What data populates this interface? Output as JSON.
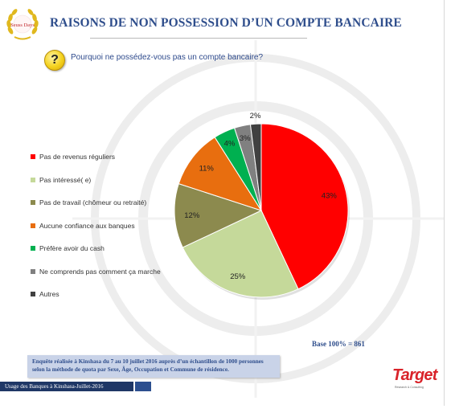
{
  "header": {
    "title": "RAISONS DE NON POSSESSION D’UN COMPTE BANCAIRE",
    "question_icon": "?",
    "question": "Pourquoi ne possédez-vous pas un compte bancaire?"
  },
  "logo": {
    "icon": "laurel-wreath-icon",
    "text": "Seuss Days"
  },
  "chart_data": {
    "type": "pie",
    "title": "",
    "slices": [
      {
        "label": "Pas de revenus réguliers",
        "value": 43,
        "value_label": "43%",
        "color": "#ff0000"
      },
      {
        "label": "Pas intéressé( e)",
        "value": 25,
        "value_label": "25%",
        "color": "#c5d99a"
      },
      {
        "label": "Pas de travail (chômeur ou retraité)",
        "value": 12,
        "value_label": "12%",
        "color": "#8c8a4e"
      },
      {
        "label": "Aucune confiance aux banques",
        "value": 11,
        "value_label": "11%",
        "color": "#e86e0f"
      },
      {
        "label": "Préfère avoir du cash",
        "value": 4,
        "value_label": "4%",
        "color": "#00b050"
      },
      {
        "label": "Ne comprends pas comment ça marche",
        "value": 3,
        "value_label": "3%",
        "color": "#808080"
      },
      {
        "label": "Autres",
        "value": 2,
        "value_label": "2%",
        "color": "#404040"
      }
    ],
    "legend_position": "left"
  },
  "base_note": "Base 100% = 861",
  "footnote": {
    "line1": "Enquête réalisée à Kinshasa du 7 au 10 juillet 2016 auprès d’un échantillon de 1000 personnes",
    "line2": "selon la méthode de quota par Sexe, Âge, Occupation et Commune de résidence."
  },
  "footer": {
    "text": "Usage des Banques à Kinshasa-Juillet-2016"
  },
  "brand": {
    "name": "Target",
    "tagline": "Research & Consulting"
  },
  "colors": {
    "title": "#2f4e8c",
    "footer_bar": "#1f3766",
    "footnote_bg": "#c9d3e8",
    "brand": "#d9232a"
  }
}
